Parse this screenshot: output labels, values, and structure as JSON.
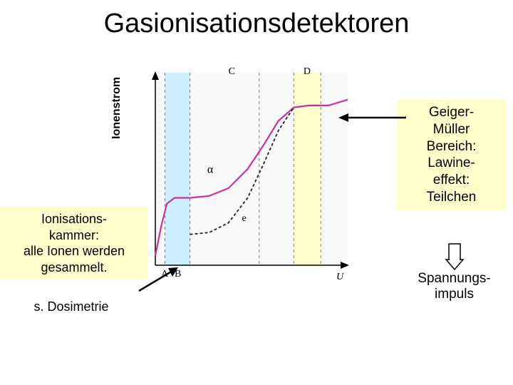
{
  "title": "Gasionisationsdetektoren",
  "ylabel": "Ionenstrom",
  "left_box": {
    "line1": "Ionisations-",
    "line2": "kammer:",
    "line3": "alle Ionen werden",
    "line4": "gesammelt.",
    "sub": "s. Dosimetrie"
  },
  "right_box": {
    "line1": "Geiger-",
    "line2": "Müller",
    "line3": "Bereich:",
    "line4": "Lawine-",
    "line5": "effekt:",
    "line6": "Teilchen",
    "sub1": "Spannungs-",
    "sub2": "impuls"
  },
  "chart": {
    "type": "line",
    "background_color": "#f8f8f8",
    "highlight_AB_color": "#cceeff",
    "highlight_D_color": "#ffffcc",
    "axis_color": "#000000",
    "grid_dash_color": "#777777",
    "alpha_curve_color": "#cc3399",
    "e_curve_color": "#222222",
    "xlim": [
      0,
      100
    ],
    "ylim": [
      0,
      100
    ],
    "region_labels": {
      "A": "A",
      "B": "B",
      "C": "C",
      "D": "D"
    },
    "curve_labels": {
      "alpha": "α",
      "e": "e"
    },
    "xlabel": "U",
    "region_AB_x": [
      5,
      18
    ],
    "region_D_x": [
      72,
      86
    ],
    "dash_lines_x": [
      5,
      18,
      54,
      72,
      86
    ],
    "alpha_points": [
      [
        0,
        5
      ],
      [
        3,
        20
      ],
      [
        6,
        32
      ],
      [
        10,
        35
      ],
      [
        18,
        35
      ],
      [
        28,
        36
      ],
      [
        38,
        40
      ],
      [
        48,
        50
      ],
      [
        56,
        62
      ],
      [
        64,
        75
      ],
      [
        72,
        82
      ],
      [
        80,
        83
      ],
      [
        90,
        83
      ],
      [
        100,
        86
      ]
    ],
    "e_points": [
      [
        18,
        16
      ],
      [
        28,
        17
      ],
      [
        38,
        22
      ],
      [
        48,
        35
      ],
      [
        56,
        52
      ],
      [
        64,
        70
      ],
      [
        72,
        82
      ]
    ],
    "alpha_line_width": 2.2,
    "e_line_width": 1.8,
    "e_dash": "4,3",
    "label_fontsize": 14,
    "axis_fontsize": 14
  },
  "arrows": {
    "color": "#000000",
    "stroke_width": 2
  },
  "colors": {
    "highlight_bg": "#ffffcc"
  }
}
